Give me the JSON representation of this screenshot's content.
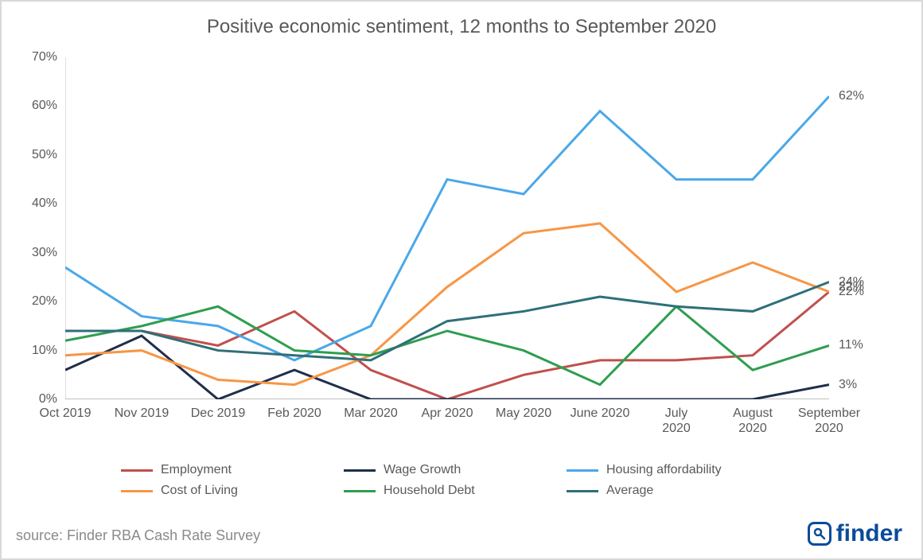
{
  "chart": {
    "type": "line",
    "title": "Positive economic sentiment, 12 months to September 2020",
    "background_color": "#ffffff",
    "border_color": "#d9d9d9",
    "axis_color": "#bfbfbf",
    "text_color": "#595959",
    "title_fontsize": 24,
    "tick_fontsize": 16,
    "ylim": [
      0,
      70
    ],
    "ytick_step": 10,
    "y_suffix": "%",
    "categories": [
      "Oct 2019",
      "Nov 2019",
      "Dec 2019",
      "Feb 2020",
      "Mar 2020",
      "Apr 2020",
      "May 2020",
      "June 2020",
      "July 2020",
      "August 2020",
      "September 2020"
    ],
    "xlabel_wrap_after": 8,
    "line_width": 3,
    "series": [
      {
        "name": "Employment",
        "color": "#c0504d",
        "values": [
          14,
          14,
          11,
          18,
          6,
          0,
          5,
          8,
          8,
          9,
          22
        ],
        "end_label": "22%"
      },
      {
        "name": "Wage Growth",
        "color": "#1f2e4a",
        "values": [
          6,
          13,
          0,
          6,
          0,
          0,
          0,
          0,
          0,
          0,
          3
        ],
        "end_label": "3%"
      },
      {
        "name": "Housing affordability",
        "color": "#4aa8e8",
        "values": [
          27,
          17,
          15,
          8,
          15,
          45,
          42,
          59,
          45,
          45,
          62
        ],
        "end_label": "62%"
      },
      {
        "name": "Cost of Living",
        "color": "#f79646",
        "values": [
          9,
          10,
          4,
          3,
          9,
          23,
          34,
          36,
          22,
          28,
          22
        ],
        "end_label": "22%"
      },
      {
        "name": "Household Debt",
        "color": "#2e9e4f",
        "values": [
          12,
          15,
          19,
          10,
          9,
          14,
          10,
          3,
          19,
          6,
          11
        ],
        "end_label": "11%"
      },
      {
        "name": "Average",
        "color": "#2f6f78",
        "values": [
          14,
          14,
          10,
          9,
          8,
          16,
          18,
          21,
          19,
          18,
          24
        ],
        "end_label": "24%"
      }
    ],
    "end_label_positions_pct": [
      22,
      3,
      62,
      23,
      11,
      24
    ],
    "source": "source: Finder RBA Cash Rate Survey",
    "brand": "finder",
    "brand_color": "#0a4b9a"
  }
}
